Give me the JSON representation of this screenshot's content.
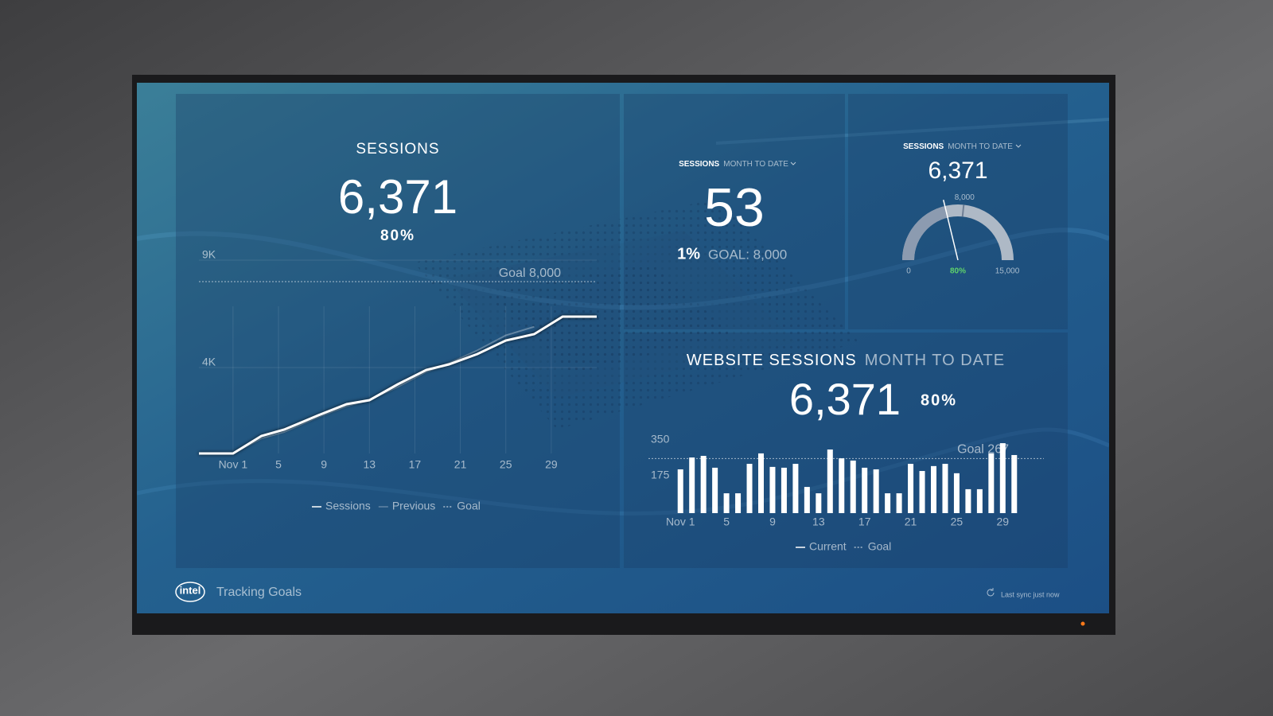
{
  "chart_data": [
    {
      "type": "line",
      "title": "SESSIONS",
      "summary": {
        "value": 6371,
        "label": "6,371"
      },
      "percent": "80%",
      "x": [
        -2,
        1,
        3.5,
        5.5,
        8.5,
        11,
        13,
        15.5,
        18,
        20,
        22.5,
        25,
        27.5,
        30,
        33
      ],
      "series": [
        {
          "name": "Sessions",
          "color": "#ffffff",
          "values": [
            0,
            0,
            815,
            1111,
            1778,
            2296,
            2481,
            3222,
            3889,
            4148,
            4630,
            5259,
            5556,
            6370,
            6371
          ]
        },
        {
          "name": "Previous",
          "color": "rgba(255,255,255,0.3)",
          "values": [
            0,
            0,
            700,
            1000,
            1700,
            2200,
            2500,
            3100,
            3800,
            4200,
            4800,
            5500,
            5900,
            null,
            null
          ]
        }
      ],
      "goal": {
        "value": 8000,
        "label": "Goal 8,000",
        "name": "Goal"
      },
      "xlim": [
        -2,
        33
      ],
      "xticks": [
        {
          "value": 1,
          "label": "Nov 1"
        },
        5,
        9,
        13,
        17,
        21,
        25,
        29
      ],
      "ylim": [
        0,
        9000
      ],
      "yticks": [
        {
          "value": 4000,
          "label": "4K"
        },
        {
          "value": 9000,
          "label": "9K"
        }
      ],
      "grid": true
    },
    {
      "type": "gauge",
      "title": "SESSIONS",
      "subtitle": "MONTH TO DATE",
      "values": [
        6371
      ],
      "value_labels": [
        "6,371"
      ],
      "color": "#8c9bb0",
      "track_color": "#aeb9c6",
      "ylim": [
        0,
        15000
      ],
      "yticks": [
        0,
        {
          "value": 15000,
          "label": "15,000"
        }
      ],
      "goal": {
        "value": 8000,
        "label": "8,000"
      },
      "percent": "80%",
      "percent_color": "#5fd36b"
    },
    {
      "type": "bar",
      "title": "WEBSITE SESSIONS",
      "subtitle": "MONTH TO DATE",
      "summary": {
        "value": 6371,
        "label": "6,371"
      },
      "percent": "80%",
      "categories": [
        "Nov 1",
        null,
        null,
        null,
        "5",
        null,
        null,
        null,
        "9",
        null,
        null,
        null,
        "13",
        null,
        null,
        null,
        "17",
        null,
        null,
        null,
        "21",
        null,
        null,
        null,
        "25",
        null,
        null,
        null,
        "29",
        null
      ],
      "series": [
        {
          "name": "Current",
          "color": "#ffffff",
          "values": [
            214,
            272,
            280,
            222,
            97,
            97,
            241,
            292,
            226,
            222,
            241,
            128,
            97,
            311,
            268,
            257,
            222,
            214,
            97,
            97,
            241,
            206,
            230,
            241,
            195,
            117,
            117,
            292,
            342,
            284
          ]
        }
      ],
      "goal": {
        "value": 267,
        "label": "Goal 267",
        "name": "Goal"
      },
      "ylim": [
        0,
        350
      ],
      "yticks": [
        175,
        350
      ]
    }
  ],
  "kpi": {
    "title": "SESSIONS",
    "period": "MONTH TO DATE",
    "value": "53",
    "percent": "1%",
    "goal": "GOAL: 8,000"
  },
  "footer": {
    "logo": "intel",
    "title": "Tracking Goals",
    "sync": "Last sync just now"
  }
}
